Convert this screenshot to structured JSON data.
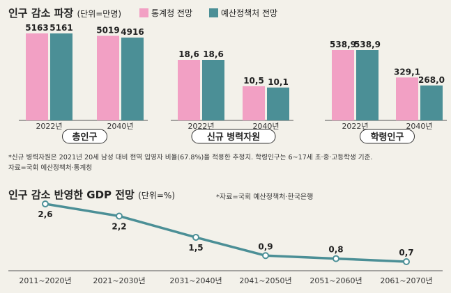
{
  "top": {
    "title": "인구 감소 파장",
    "unit": "(단위=만명)",
    "legend": [
      {
        "name": "통계청 전망",
        "color": "#f2a0c4"
      },
      {
        "name": "예산정책처 전망",
        "color": "#4b8f96"
      }
    ],
    "footnote_1": "*신규 병력자원은 2021년 20세 남성 대비 현역 입영자 비율(67.8%)을 적용한 추정치. 학령인구는 6~17세 초·중·고등학생 기준.",
    "footnote_2": "자료=국회 예산정책처·통계청"
  },
  "bottom": {
    "title": "인구 감소 반영한 GDP 전망",
    "unit": "(단위=%)",
    "source": "*자료=국회 예산정책처·한국은행"
  },
  "chart_data": [
    {
      "type": "bar",
      "panel_label": "총인구",
      "categories": [
        "2022년",
        "2040년"
      ],
      "series": [
        {
          "name": "통계청 전망",
          "values": [
            5163,
            5019
          ],
          "labels": [
            "5163",
            "5019"
          ]
        },
        {
          "name": "예산정책처 전망",
          "values": [
            5161,
            4916
          ],
          "labels": [
            "5161",
            "4916"
          ]
        }
      ]
    },
    {
      "type": "bar",
      "panel_label": "신규 병력자원",
      "categories": [
        "2022년",
        "2040년"
      ],
      "series": [
        {
          "name": "통계청 전망",
          "values": [
            18.6,
            10.5
          ],
          "labels": [
            "18,6",
            "10,5"
          ]
        },
        {
          "name": "예산정책처 전망",
          "values": [
            18.6,
            10.1
          ],
          "labels": [
            "18,6",
            "10,1"
          ]
        }
      ]
    },
    {
      "type": "bar",
      "panel_label": "학령인구",
      "categories": [
        "2022년",
        "2040년"
      ],
      "series": [
        {
          "name": "통계청 전망",
          "values": [
            538.9,
            329.1
          ],
          "labels": [
            "538,9",
            "329,1"
          ]
        },
        {
          "name": "예산정책처 전망",
          "values": [
            538.9,
            268.0
          ],
          "labels": [
            "538,9",
            "268,0"
          ]
        }
      ]
    },
    {
      "type": "line",
      "categories": [
        "2011~2020년",
        "2021~2030년",
        "2031~2040년",
        "2041~2050년",
        "2051~2060년",
        "2061~2070년"
      ],
      "values": [
        2.6,
        2.2,
        1.5,
        0.9,
        0.8,
        0.7
      ],
      "labels": [
        "2,6",
        "2,2",
        "1,5",
        "0,9",
        "0,8",
        "0,7"
      ],
      "color": "#4b8f96"
    }
  ]
}
